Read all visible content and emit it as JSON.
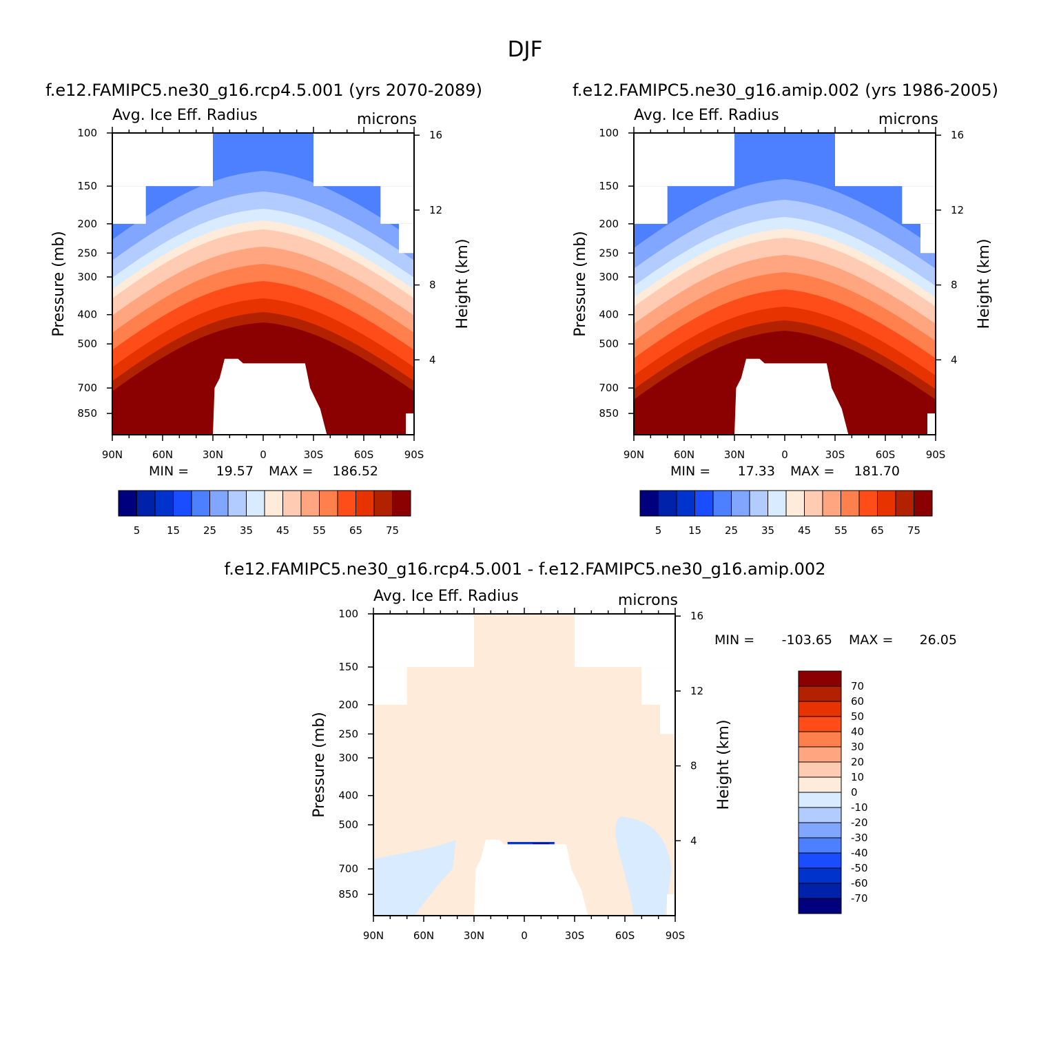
{
  "figure": {
    "title": "DJF"
  },
  "colors": {
    "seq_palette": [
      "#00007f",
      "#0022aa",
      "#0033cc",
      "#1a4dff",
      "#4d80ff",
      "#80a6ff",
      "#b3ccff",
      "#d9ebff",
      "#ffebd9",
      "#ffccb3",
      "#ffa680",
      "#ff804d",
      "#ff4d1a",
      "#e63300",
      "#b22200",
      "#8b0000"
    ],
    "diff_palette": [
      "#00007f",
      "#0022aa",
      "#0033cc",
      "#1a4dff",
      "#4d80ff",
      "#80a6ff",
      "#b3ccff",
      "#d9ebff",
      "#ffebd9",
      "#ffccb3",
      "#ffa680",
      "#ff804d",
      "#ff4d1a",
      "#e63300",
      "#b22200",
      "#8b0000"
    ]
  },
  "chart_data": [
    {
      "type": "heatmap",
      "panel": "top-left",
      "case": "f.e12.FAMIPC5.ne30_g16.rcp4.5.001 (yrs 2070-2089)",
      "left_label": "Avg. Ice Eff. Radius",
      "right_label": "microns",
      "ylabel": "Pressure (mb)",
      "ylabel_right": "Height (km)",
      "x_ticks": [
        "90N",
        "60N",
        "30N",
        "0",
        "30S",
        "60S",
        "90S"
      ],
      "y_ticks": [
        100,
        150,
        200,
        250,
        300,
        400,
        500,
        700,
        850
      ],
      "y2_ticks": [
        4,
        8,
        12,
        16
      ],
      "ylim": [
        100,
        1000
      ],
      "y_scale": "log",
      "stats": {
        "min_label": "MIN =",
        "min": "19.57",
        "max_label": "MAX =",
        "max": "186.52"
      },
      "colorbar": {
        "orientation": "horizontal",
        "levels": [
          5,
          10,
          15,
          20,
          25,
          30,
          35,
          40,
          45,
          50,
          55,
          60,
          65,
          70,
          75
        ],
        "labels": [
          "5",
          "15",
          "25",
          "35",
          "45",
          "55",
          "65",
          "75"
        ]
      }
    },
    {
      "type": "heatmap",
      "panel": "top-right",
      "case": "f.e12.FAMIPC5.ne30_g16.amip.002 (yrs 1986-2005)",
      "left_label": "Avg. Ice Eff. Radius",
      "right_label": "microns",
      "ylabel": "Pressure (mb)",
      "ylabel_right": "Height (km)",
      "x_ticks": [
        "90N",
        "60N",
        "30N",
        "0",
        "30S",
        "60S",
        "90S"
      ],
      "y_ticks": [
        100,
        150,
        200,
        250,
        300,
        400,
        500,
        700,
        850
      ],
      "y2_ticks": [
        4,
        8,
        12,
        16
      ],
      "ylim": [
        100,
        1000
      ],
      "y_scale": "log",
      "stats": {
        "min_label": "MIN =",
        "min": "17.33",
        "max_label": "MAX =",
        "max": "181.70"
      },
      "colorbar": {
        "orientation": "horizontal",
        "levels": [
          5,
          10,
          15,
          20,
          25,
          30,
          35,
          40,
          45,
          50,
          55,
          60,
          65,
          70,
          75
        ],
        "labels": [
          "5",
          "15",
          "25",
          "35",
          "45",
          "55",
          "65",
          "75"
        ]
      }
    },
    {
      "type": "heatmap",
      "panel": "bottom",
      "case": "f.e12.FAMIPC5.ne30_g16.rcp4.5.001 - f.e12.FAMIPC5.ne30_g16.amip.002",
      "left_label": "Avg. Ice Eff. Radius",
      "right_label": "microns",
      "ylabel": "Pressure (mb)",
      "ylabel_right": "Height (km)",
      "x_ticks": [
        "90N",
        "60N",
        "30N",
        "0",
        "30S",
        "60S",
        "90S"
      ],
      "y_ticks": [
        100,
        150,
        200,
        250,
        300,
        400,
        500,
        700,
        850
      ],
      "y2_ticks": [
        4,
        8,
        12,
        16
      ],
      "ylim": [
        100,
        1000
      ],
      "y_scale": "log",
      "stats": {
        "min_label": "MIN =",
        "min": "-103.65",
        "max_label": "MAX =",
        "max": "26.05"
      },
      "colorbar": {
        "orientation": "vertical",
        "labels": [
          "70",
          "60",
          "50",
          "40",
          "30",
          "20",
          "10",
          "0",
          "-10",
          "-20",
          "-30",
          "-40",
          "-50",
          "-60",
          "-70"
        ]
      }
    }
  ]
}
